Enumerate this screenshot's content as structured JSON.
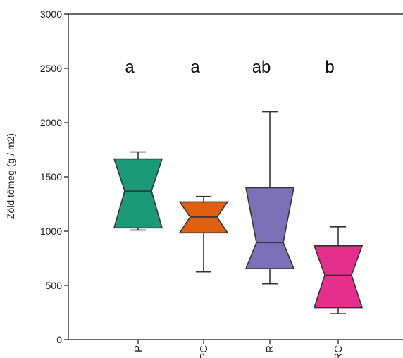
{
  "chart_data": {
    "type": "box",
    "title": "",
    "xlabel": "",
    "ylabel": "Zöld tömeg (g / m2)",
    "ylim": [
      0,
      3000
    ],
    "yticks": [
      0,
      500,
      1000,
      1500,
      2000,
      2500,
      3000
    ],
    "notched": true,
    "grid": false,
    "categories": [
      "P",
      "PC",
      "R",
      "RC"
    ],
    "boxes": [
      {
        "category": "P",
        "min": 1010,
        "q1": 1030,
        "median": 1370,
        "q3": 1665,
        "max": 1730,
        "color": "#1a9a76",
        "letter": "a"
      },
      {
        "category": "PC",
        "min": 625,
        "q1": 985,
        "median": 1130,
        "q3": 1270,
        "max": 1320,
        "color": "#e06010",
        "letter": "a"
      },
      {
        "category": "R",
        "min": 515,
        "q1": 655,
        "median": 895,
        "q3": 1400,
        "max": 2100,
        "color": "#7c71b7",
        "letter": "ab"
      },
      {
        "category": "RC",
        "min": 240,
        "q1": 295,
        "median": 595,
        "q3": 865,
        "max": 1040,
        "color": "#e52f8b",
        "letter": "b"
      }
    ]
  }
}
